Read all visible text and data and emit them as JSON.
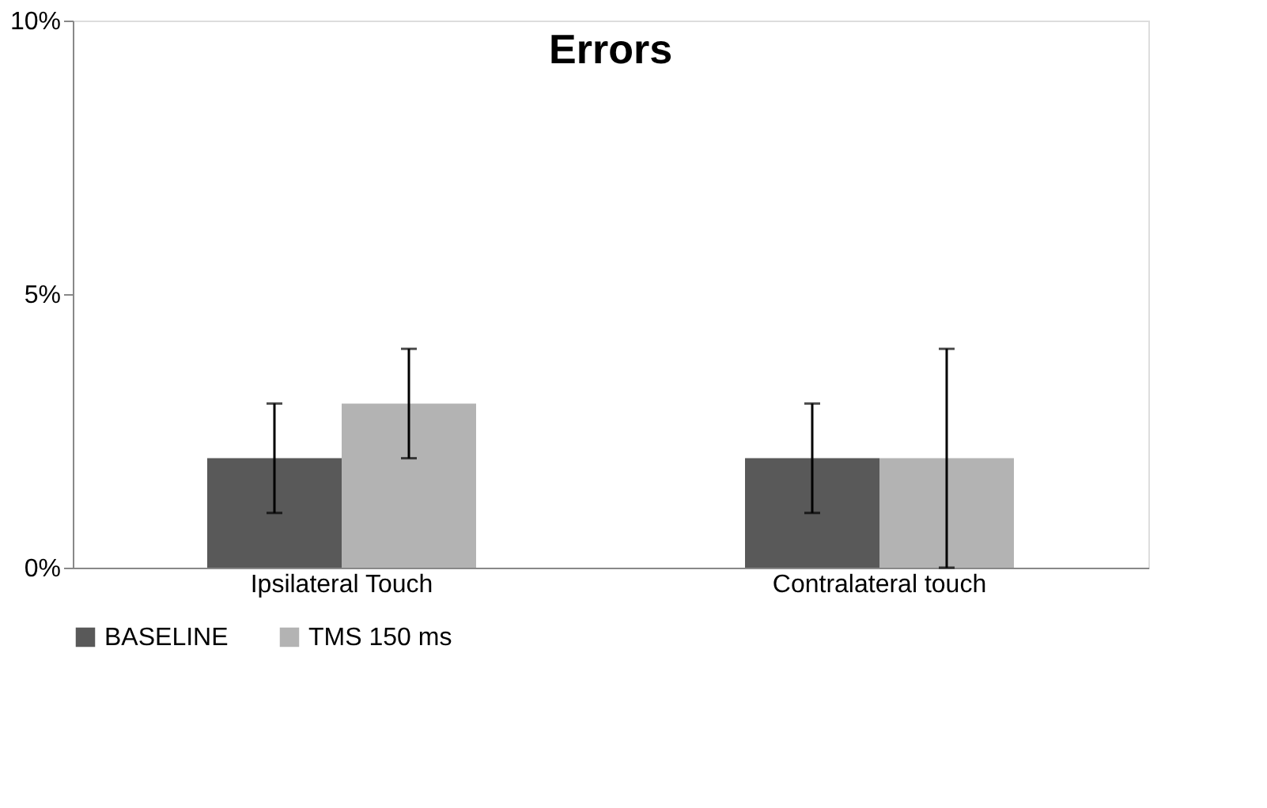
{
  "chart_data": {
    "type": "bar",
    "title": "Errors",
    "categories": [
      "Ipsilateral Touch",
      "Contralateral touch"
    ],
    "series": [
      {
        "name": "BASELINE",
        "color": "#595959",
        "values": [
          2,
          2
        ],
        "errors": [
          1,
          1
        ]
      },
      {
        "name": "TMS 150 ms",
        "color": "#b3b3b3",
        "values": [
          3,
          2
        ],
        "errors": [
          1,
          2
        ]
      }
    ],
    "ylim": [
      0,
      10
    ],
    "yticks": [
      {
        "value": 0,
        "label": "0%"
      },
      {
        "value": 5,
        "label": "5%"
      },
      {
        "value": 10,
        "label": "10%"
      }
    ],
    "grid": false,
    "legend": "bottom"
  }
}
